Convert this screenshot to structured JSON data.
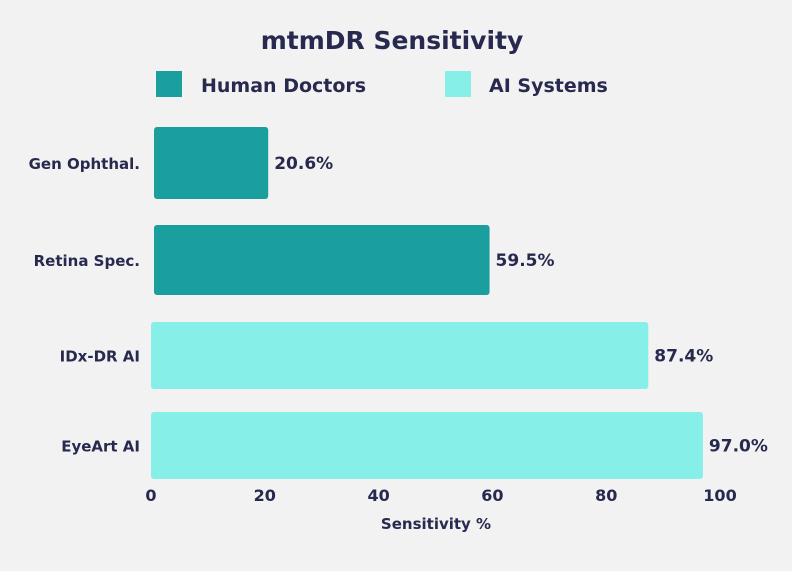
{
  "chart_data": {
    "type": "bar",
    "orientation": "horizontal",
    "title": "mtmDR Sensitivity",
    "xlabel": "Sensitivity %",
    "ylabel": "",
    "xlim": [
      0,
      100
    ],
    "xticks": [
      "0",
      "20",
      "40",
      "60",
      "80",
      "100"
    ],
    "grid": false,
    "legend_position": "top",
    "legend": [
      {
        "name": "Human Doctors",
        "color": "#1a9e9e"
      },
      {
        "name": "AI Systems",
        "color": "#85efe8"
      }
    ],
    "categories": [
      "Gen Ophthal.",
      "Retina Spec.",
      "IDx-DR AI",
      "EyeArt AI"
    ],
    "values": [
      20.6,
      59.5,
      87.4,
      97.0
    ],
    "value_labels": [
      "20.6%",
      "59.5%",
      "87.4%",
      "97.0%"
    ],
    "group": [
      "Human Doctors",
      "Human Doctors",
      "AI Systems",
      "AI Systems"
    ]
  }
}
